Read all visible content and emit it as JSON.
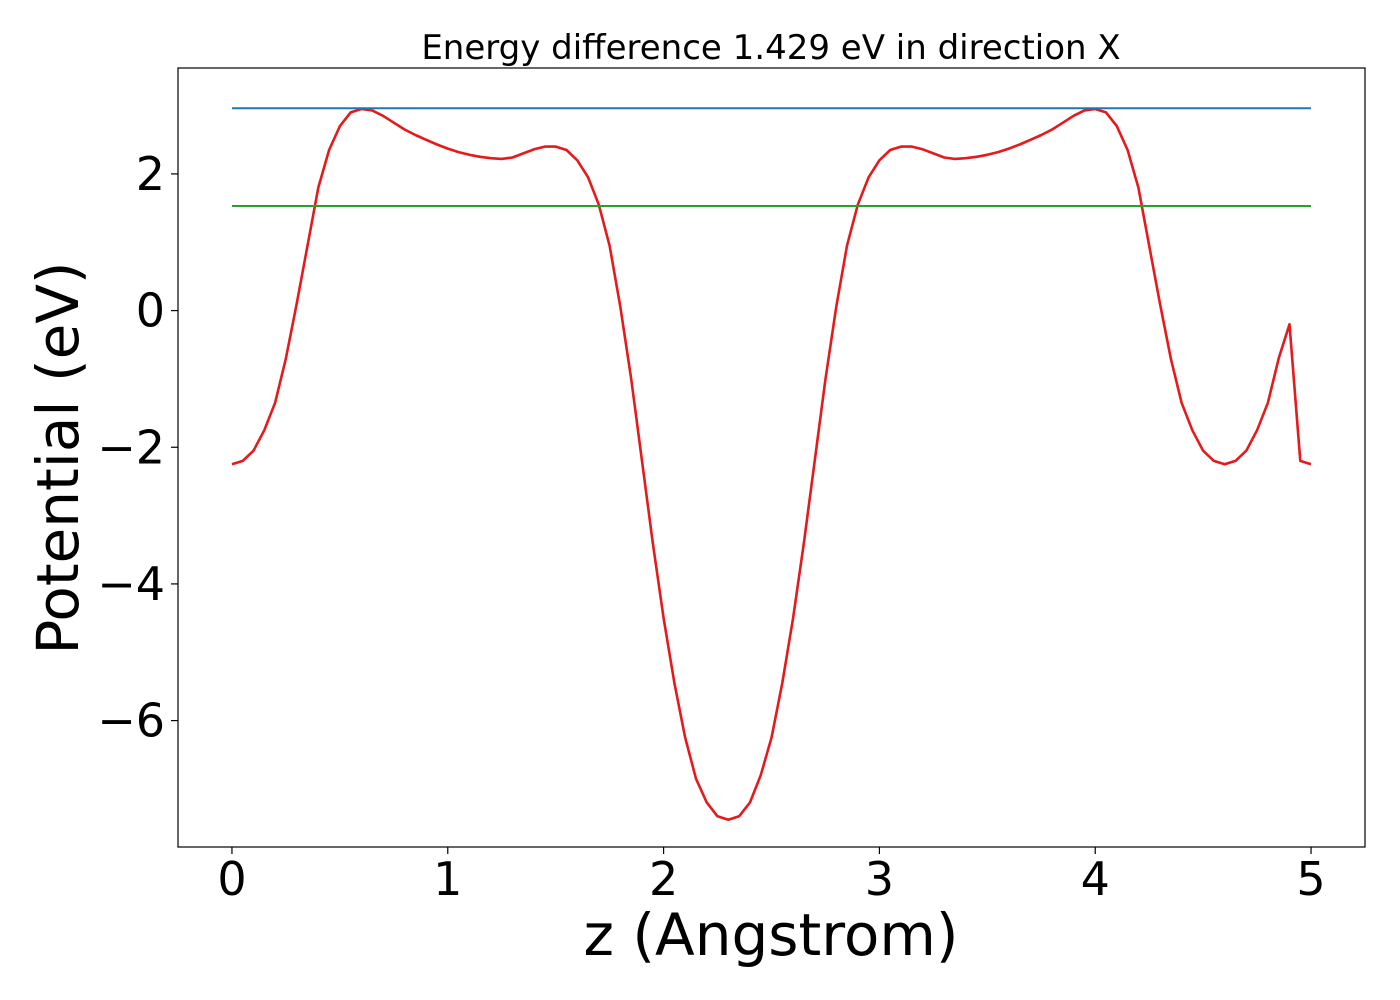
{
  "chart_data": {
    "type": "line",
    "title": "Energy difference 1.429 eV in direction X",
    "xlabel": "z (Angstrom)",
    "ylabel": "Potential (eV)",
    "xlim": [
      -0.25,
      5.25
    ],
    "ylim": [
      -7.85,
      3.55
    ],
    "x_ticks": [
      0,
      1,
      2,
      3,
      4,
      5
    ],
    "x_tick_labels": [
      "0",
      "1",
      "2",
      "3",
      "4",
      "5"
    ],
    "y_ticks": [
      -6,
      -4,
      -2,
      0,
      2
    ],
    "y_tick_labels": [
      "−6",
      "−4",
      "−2",
      "0",
      "2"
    ],
    "grid": false,
    "legend": "none",
    "series": [
      {
        "color": "#e41a1c",
        "x": [
          0.0,
          0.05,
          0.1,
          0.15,
          0.2,
          0.25,
          0.3,
          0.35,
          0.4,
          0.45,
          0.5,
          0.55,
          0.6,
          0.65,
          0.7,
          0.75,
          0.8,
          0.85,
          0.9,
          0.95,
          1.0,
          1.05,
          1.1,
          1.15,
          1.2,
          1.25,
          1.3,
          1.35,
          1.4,
          1.45,
          1.5,
          1.55,
          1.6,
          1.65,
          1.7,
          1.75,
          1.8,
          1.85,
          1.9,
          1.95,
          2.0,
          2.05,
          2.1,
          2.15,
          2.2,
          2.25,
          2.3,
          2.35,
          2.4,
          2.45,
          2.5,
          2.55,
          2.6,
          2.65,
          2.7,
          2.75,
          2.8,
          2.85,
          2.9,
          2.95,
          3.0,
          3.05,
          3.1,
          3.15,
          3.2,
          3.25,
          3.3,
          3.35,
          3.4,
          3.45,
          3.5,
          3.55,
          3.6,
          3.65,
          3.7,
          3.75,
          3.8,
          3.85,
          3.9,
          3.95,
          4.0,
          4.05,
          4.1,
          4.15,
          4.2,
          4.25,
          4.3,
          4.35,
          4.4,
          4.45,
          4.5,
          4.55,
          4.6,
          4.65,
          4.7,
          4.75,
          4.8,
          4.85,
          4.9,
          4.95,
          5.0
        ],
        "y": [
          -2.25,
          -2.2,
          -2.05,
          -1.75,
          -1.35,
          -0.7,
          0.1,
          0.95,
          1.8,
          2.35,
          2.7,
          2.9,
          2.95,
          2.93,
          2.85,
          2.75,
          2.65,
          2.57,
          2.5,
          2.43,
          2.37,
          2.32,
          2.28,
          2.25,
          2.23,
          2.22,
          2.24,
          2.3,
          2.36,
          2.4,
          2.4,
          2.35,
          2.2,
          1.95,
          1.55,
          0.95,
          0.05,
          -1.0,
          -2.2,
          -3.4,
          -4.5,
          -5.45,
          -6.25,
          -6.85,
          -7.2,
          -7.4,
          -7.45,
          -7.4,
          -7.2,
          -6.8,
          -6.25,
          -5.45,
          -4.5,
          -3.4,
          -2.2,
          -1.0,
          0.05,
          0.95,
          1.55,
          1.95,
          2.2,
          2.35,
          2.4,
          2.4,
          2.36,
          2.3,
          2.24,
          2.22,
          2.23,
          2.25,
          2.28,
          2.32,
          2.37,
          2.43,
          2.5,
          2.57,
          2.65,
          2.75,
          2.85,
          2.93,
          2.95,
          2.9,
          2.7,
          2.35,
          1.8,
          0.95,
          0.1,
          -0.7,
          -1.35,
          -1.75,
          -2.05,
          -2.2,
          -2.25,
          -2.2,
          -2.05,
          -1.75,
          -1.35,
          -0.7,
          -0.2,
          -2.2,
          -2.25
        ]
      },
      {
        "color": "#1f77b4",
        "x": [
          0.0,
          5.0
        ],
        "y": [
          2.96,
          2.96
        ]
      },
      {
        "color": "#2ca02c",
        "x": [
          0.0,
          5.0
        ],
        "y": [
          1.53,
          1.53
        ]
      }
    ]
  }
}
